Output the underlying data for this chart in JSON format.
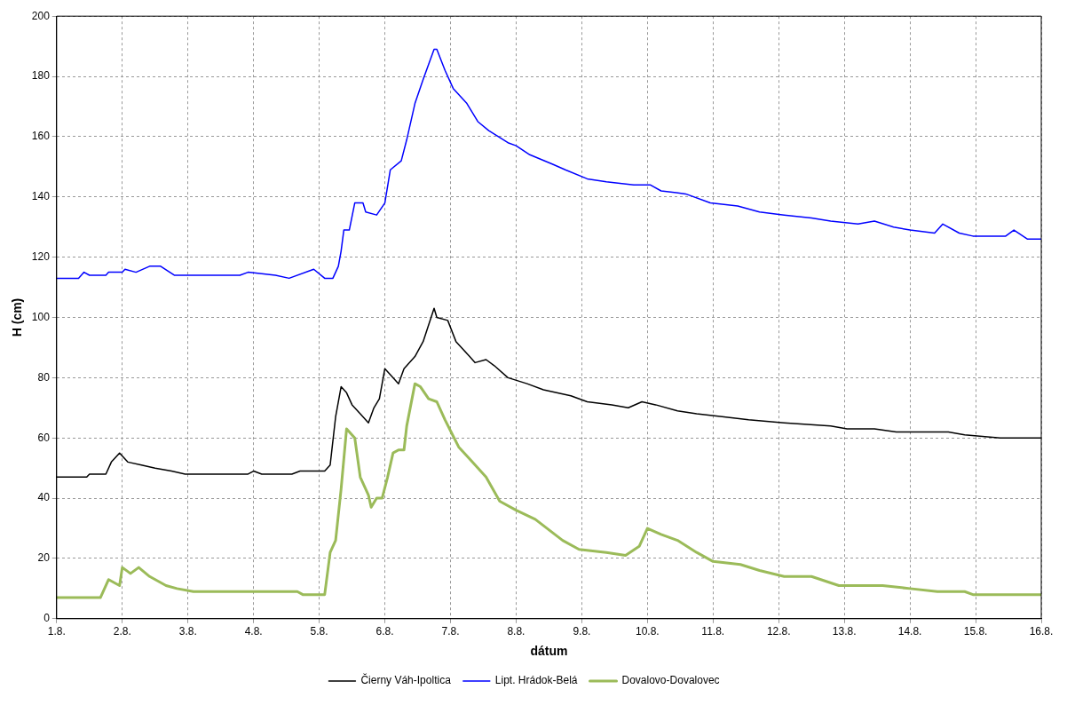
{
  "chart_data": {
    "type": "line",
    "xlabel": "dátum",
    "ylabel": "H (cm)",
    "xlim": [
      "--08-01",
      "--08-16"
    ],
    "xticks": [
      {
        "value": "--08-01",
        "label": "1.8."
      },
      {
        "value": "--08-02",
        "label": "2.8."
      },
      {
        "value": "--08-03",
        "label": "3.8."
      },
      {
        "value": "--08-04",
        "label": "4.8."
      },
      {
        "value": "--08-05",
        "label": "5.8."
      },
      {
        "value": "--08-06",
        "label": "6.8."
      },
      {
        "value": "--08-07",
        "label": "7.8."
      },
      {
        "value": "--08-08",
        "label": "8.8."
      },
      {
        "value": "--08-09",
        "label": "9.8."
      },
      {
        "value": "--08-10",
        "label": "10.8."
      },
      {
        "value": "--08-11",
        "label": "11.8."
      },
      {
        "value": "--08-12",
        "label": "12.8."
      },
      {
        "value": "--08-13",
        "label": "13.8."
      },
      {
        "value": "--08-14",
        "label": "14.8."
      },
      {
        "value": "--08-15",
        "label": "15.8."
      },
      {
        "value": "--08-16",
        "label": "16.8."
      }
    ],
    "ylim": [
      0,
      200
    ],
    "yticks": [
      0,
      20,
      40,
      60,
      80,
      100,
      120,
      140,
      160,
      180,
      200
    ],
    "grid": true,
    "legend": "bottom",
    "marker": "none",
    "line_style": "solid",
    "series": [
      {
        "name": "Čierny Váh-Ipoltica",
        "color": "#000000",
        "x": [
          "--08-01T00:00",
          "--08-01T11:00",
          "--08-01T12:00",
          "--08-01T18:00",
          "--08-01T20:00",
          "--08-01T23:00",
          "--08-02T02:00",
          "--08-02T07:00",
          "--08-02T12:00",
          "--08-02T18:00",
          "--08-02T23:00",
          "--08-03T22:00",
          "--08-04T00:00",
          "--08-04T03:00",
          "--08-04T14:00",
          "--08-04T17:00",
          "--08-05T02:00",
          "--08-05T04:00",
          "--08-05T06:00",
          "--08-05T08:00",
          "--08-05T10:00",
          "--08-05T12:00",
          "--08-05T15:00",
          "--08-05T18:00",
          "--08-05T20:00",
          "--08-05T22:00",
          "--08-06T00:00",
          "--08-06T02:00",
          "--08-06T05:00",
          "--08-06T07:00",
          "--08-06T11:00",
          "--08-06T14:00",
          "--08-06T18:00",
          "--08-06T19:00",
          "--08-06T23:00",
          "--08-07T02:00",
          "--08-07T07:00",
          "--08-07T09:00",
          "--08-07T13:00",
          "--08-07T16:00",
          "--08-07T21:00",
          "--08-08T04:00",
          "--08-08T10:00",
          "--08-08T20:00",
          "--08-09T02:00",
          "--08-09T11:00",
          "--08-09T17:00",
          "--08-09T22:00",
          "--08-10T03:00",
          "--08-10T11:00",
          "--08-10T18:00",
          "--08-11T04:00",
          "--08-11T13:00",
          "--08-12T02:00",
          "--08-12T19:00",
          "--08-13T01:00",
          "--08-13T11:00",
          "--08-13T19:00",
          "--08-14T14:00",
          "--08-14T20:00",
          "--08-15T09:00",
          "--08-16T00:00"
        ],
        "values": [
          47,
          47,
          48,
          48,
          52,
          55,
          52,
          51,
          50,
          49,
          48,
          48,
          49,
          48,
          48,
          49,
          49,
          51,
          67,
          77,
          75,
          71,
          68,
          65,
          70,
          73,
          83,
          81,
          78,
          83,
          87,
          92,
          103,
          100,
          99,
          92,
          87,
          85,
          86,
          84,
          80,
          78,
          76,
          74,
          72,
          71,
          70,
          72,
          71,
          69,
          68,
          67,
          66,
          65,
          64,
          63,
          63,
          62,
          62,
          61,
          60,
          60
        ]
      },
      {
        "name": "Lipt. Hrádok-Belá",
        "color": "#0000ff",
        "x": [
          "--08-01T00:00",
          "--08-01T08:00",
          "--08-01T10:00",
          "--08-01T12:00",
          "--08-01T18:00",
          "--08-01T19:00",
          "--08-02T00:00",
          "--08-02T01:00",
          "--08-02T05:00",
          "--08-02T10:00",
          "--08-02T14:00",
          "--08-02T19:00",
          "--08-03T19:00",
          "--08-03T22:00",
          "--08-04T08:00",
          "--08-04T13:00",
          "--08-04T22:00",
          "--08-05T02:00",
          "--08-05T05:00",
          "--08-05T07:00",
          "--08-05T08:00",
          "--08-05T09:00",
          "--08-05T11:00",
          "--08-05T13:00",
          "--08-05T16:00",
          "--08-05T17:00",
          "--08-05T21:00",
          "--08-06T00:00",
          "--08-06T02:00",
          "--08-06T06:00",
          "--08-06T08:00",
          "--08-06T11:00",
          "--08-06T14:00",
          "--08-06T18:00",
          "--08-06T19:00",
          "--08-06T22:00",
          "--08-07T01:00",
          "--08-07T06:00",
          "--08-07T10:00",
          "--08-07T14:00",
          "--08-07T21:00",
          "--08-08T00:00",
          "--08-08T05:00",
          "--08-08T13:00",
          "--08-08T18:00",
          "--08-09T02:00",
          "--08-09T09:00",
          "--08-09T19:00",
          "--08-10T01:00",
          "--08-10T05:00",
          "--08-10T14:00",
          "--08-10T23:00",
          "--08-11T09:00",
          "--08-11T17:00",
          "--08-12T02:00",
          "--08-12T12:00",
          "--08-12T19:00",
          "--08-13T05:00",
          "--08-13T11:00",
          "--08-13T18:00",
          "--08-14T00:00",
          "--08-14T09:00",
          "--08-14T12:00",
          "--08-14T18:00",
          "--08-14T23:00",
          "--08-15T11:00",
          "--08-15T14:00",
          "--08-15T19:00",
          "--08-16T00:00"
        ],
        "values": [
          113,
          113,
          115,
          114,
          114,
          115,
          115,
          116,
          115,
          117,
          117,
          114,
          114,
          115,
          114,
          113,
          116,
          113,
          113,
          117,
          122,
          129,
          129,
          138,
          138,
          135,
          134,
          138,
          149,
          152,
          159,
          171,
          179,
          189,
          189,
          182,
          176,
          171,
          165,
          162,
          158,
          157,
          154,
          151,
          149,
          146,
          145,
          144,
          144,
          142,
          141,
          138,
          137,
          135,
          134,
          133,
          132,
          131,
          132,
          130,
          129,
          128,
          131,
          128,
          127,
          127,
          129,
          126,
          126
        ]
      },
      {
        "name": "Dovalovo-Dovalovec",
        "color": "#9bbb59",
        "x": [
          "--08-01T00:00",
          "--08-01T16:00",
          "--08-01T19:00",
          "--08-01T23:00",
          "--08-02T00:00",
          "--08-02T03:00",
          "--08-02T06:00",
          "--08-02T10:00",
          "--08-02T16:00",
          "--08-02T20:00",
          "--08-03T02:00",
          "--08-04T16:00",
          "--08-04T18:00",
          "--08-05T02:00",
          "--08-05T04:00",
          "--08-05T06:00",
          "--08-05T08:00",
          "--08-05T10:00",
          "--08-05T13:00",
          "--08-05T15:00",
          "--08-05T18:00",
          "--08-05T19:00",
          "--08-05T21:00",
          "--08-05T23:00",
          "--08-06T01:00",
          "--08-06T03:00",
          "--08-06T05:00",
          "--08-06T07:00",
          "--08-06T08:00",
          "--08-06T11:00",
          "--08-06T13:00",
          "--08-06T16:00",
          "--08-06T19:00",
          "--08-06T22:00",
          "--08-07T03:00",
          "--08-07T08:00",
          "--08-07T13:00",
          "--08-07T18:00",
          "--08-08T00:00",
          "--08-08T07:00",
          "--08-08T17:00",
          "--08-08T23:00",
          "--08-09T09:00",
          "--08-09T16:00",
          "--08-09T21:00",
          "--08-10T00:00",
          "--08-10T05:00",
          "--08-10T11:00",
          "--08-10T18:00",
          "--08-11T00:00",
          "--08-11T10:00",
          "--08-11T17:00",
          "--08-12T02:00",
          "--08-12T12:00",
          "--08-12T22:00",
          "--08-13T14:00",
          "--08-14T00:00",
          "--08-14T10:00",
          "--08-14T20:00",
          "--08-14T23:00",
          "--08-16T00:00"
        ],
        "values": [
          7,
          7,
          13,
          11,
          17,
          15,
          17,
          14,
          11,
          10,
          9,
          9,
          8,
          8,
          22,
          26,
          43,
          63,
          60,
          47,
          41,
          37,
          40,
          40,
          47,
          55,
          56,
          56,
          64,
          78,
          77,
          73,
          72,
          66,
          57,
          52,
          47,
          39,
          36,
          33,
          26,
          23,
          22,
          21,
          24,
          30,
          28,
          26,
          22,
          19,
          18,
          16,
          14,
          14,
          11,
          11,
          10,
          9,
          9,
          8,
          8
        ]
      }
    ]
  }
}
